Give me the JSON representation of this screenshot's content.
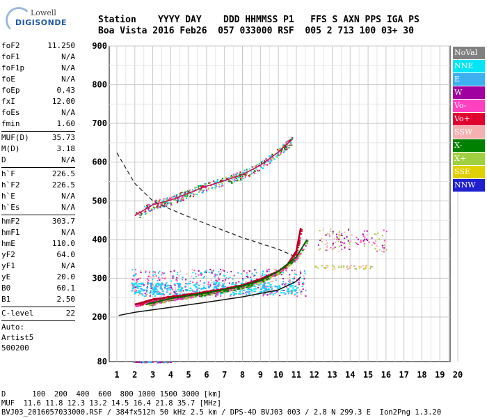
{
  "logo": {
    "line1": "Lowell",
    "line2": "DIGISONDE"
  },
  "header": {
    "row1": "Station    YYYY DAY    DDD HHMMSS P1   FFS S AXN PPS IGA PS",
    "row2": "Boa Vista 2016 Feb26  057 033000 RSF  005 2 713 100 03+ 30"
  },
  "params": {
    "g1": [
      [
        "foF2",
        "11.250"
      ],
      [
        "foF1",
        "N/A"
      ],
      [
        "foF1p",
        "N/A"
      ],
      [
        "foE",
        "N/A"
      ],
      [
        "foEp",
        "0.43"
      ],
      [
        "fxI",
        "12.00"
      ],
      [
        "foEs",
        "N/A"
      ],
      [
        "fmin",
        "1.60"
      ]
    ],
    "g2": [
      [
        "MUF(D)",
        "35.73"
      ],
      [
        "M(D)",
        "3.18"
      ],
      [
        "D",
        "N/A"
      ]
    ],
    "g3": [
      [
        "h`F",
        "226.5"
      ],
      [
        "h`F2",
        "226.5"
      ],
      [
        "h`E",
        "N/A"
      ],
      [
        "h`Es",
        "N/A"
      ]
    ],
    "g4": [
      [
        "hmF2",
        "303.7"
      ],
      [
        "hmF1",
        "N/A"
      ],
      [
        "hmE",
        "110.0"
      ],
      [
        "yF2",
        "64.0"
      ],
      [
        "yF1",
        "N/A"
      ],
      [
        "yE",
        "20.0"
      ],
      [
        "B0",
        "60.1"
      ],
      [
        "B1",
        "2.50"
      ]
    ],
    "g5": [
      [
        "C-level",
        "22"
      ]
    ]
  },
  "auto": {
    "l1": "Auto:",
    "l2": "Artist5",
    "l3": "500200"
  },
  "legend": [
    {
      "label": "NoVal",
      "color": "#808080"
    },
    {
      "label": "NNE",
      "color": "#00e5f5"
    },
    {
      "label": "E",
      "color": "#3cb0f0"
    },
    {
      "label": "W",
      "color": "#a000a0"
    },
    {
      "label": "Vo-",
      "color": "#ff40c0"
    },
    {
      "label": "Vo+",
      "color": "#e00030"
    },
    {
      "label": "SSW",
      "color": "#f5b0b0"
    },
    {
      "label": "X-",
      "color": "#008000"
    },
    {
      "label": "X+",
      "color": "#a0d040"
    },
    {
      "label": "SSE",
      "color": "#e0d000"
    },
    {
      "label": "NNW",
      "color": "#2020d0"
    }
  ],
  "axes": {
    "x_ticks": [
      "1",
      "2",
      "3",
      "4",
      "5",
      "6",
      "7",
      "8",
      "9",
      "10",
      "11",
      "12",
      "13",
      "14",
      "15",
      "16",
      "17",
      "18",
      "19",
      "20"
    ],
    "y_ticks": [
      "900",
      "800",
      "700",
      "600",
      "500",
      "400",
      "300",
      "200",
      "80"
    ]
  },
  "footer": {
    "d_row": "D      100  200  400  600  800 1000 1500 3000 [km]",
    "muf_row": "MUF  11.6 11.8 12.3 13.2 14.5 16.4 21.8 35.7 [MHz]",
    "info_row": "BVJ03_2016057033000.RSF / 384fx512h 50 kHz 2.5 km / DPS-4D BVJ03 003 / 2.8 N 299.3 E  Ion2Png 1.3.20"
  },
  "chart_data": {
    "type": "scatter",
    "x_range": [
      1,
      20
    ],
    "y_range": [
      80,
      900
    ],
    "y_scale": "non-linear (80 at bottom, 200-900 linear)",
    "grid": true,
    "legend_position": "right",
    "series_description": "ionogram echo traces",
    "traces": {
      "o_trace_F2": {
        "x": [
          2.0,
          3,
          4,
          5,
          6,
          7,
          8,
          9,
          10,
          10.5,
          11.0,
          11.25
        ],
        "y": [
          232,
          245,
          252,
          258,
          265,
          272,
          282,
          298,
          318,
          335,
          370,
          430
        ]
      },
      "x_trace_F2": {
        "x": [
          2.6,
          4,
          6,
          8,
          9,
          10,
          11,
          11.6
        ],
        "y": [
          232,
          248,
          262,
          280,
          294,
          318,
          355,
          400
        ]
      },
      "multihop": {
        "x": [
          2.0,
          3,
          4,
          5,
          6,
          7,
          8,
          9,
          10,
          10.8
        ],
        "y": [
          462,
          490,
          502,
          520,
          538,
          552,
          568,
          592,
          626,
          660
        ]
      },
      "profile": {
        "x": [
          1.1,
          2,
          4,
          6,
          8,
          10,
          11,
          11.25
        ],
        "y": [
          204,
          212,
          225,
          238,
          252,
          270,
          292,
          303.7
        ]
      },
      "muf_curve": {
        "x": [
          1,
          2,
          3,
          4,
          6,
          8,
          10,
          11
        ],
        "y": [
          624,
          545,
          500,
          478,
          440,
          405,
          375,
          355
        ]
      }
    }
  }
}
